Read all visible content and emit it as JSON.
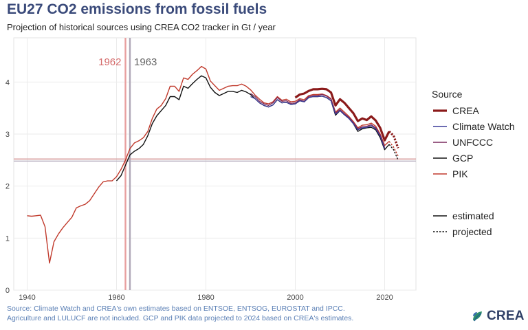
{
  "header": {
    "title": "EU27 CO2 emissions from fossil fuels",
    "subtitle": "Projection of historical sources using CREA CO2 tracker in Gt / year"
  },
  "footer": {
    "caption_line1": "Source: Climate Watch and CREA's own estimates based on ENTSOE, ENTSOG, EUROSTAT and IPCC.",
    "caption_line2": "Agriculture and LULUCF are not included. GCP and PIK data projected to 2024 based on CREA's estimates.",
    "logo_text": "CREA",
    "logo_icon": "crea-leaf-logo-icon"
  },
  "colors": {
    "CREA": "#8b1a1a",
    "Climate Watch": "#3b3b98",
    "UNFCCC": "#7a2a5e",
    "GCP": "#111111",
    "PIK": "#c0392b",
    "vline_1962": "#e8a0a0",
    "vline_1963": "#b0a8b8",
    "hline": "#d9a0a0",
    "label_1962": "#d46a6a",
    "label_1963": "#666666"
  },
  "chart_data": {
    "type": "line",
    "title": "EU27 CO2 emissions from fossil fuels",
    "subtitle": "Projection of historical sources using CREA CO2 tracker in Gt / year",
    "xlabel": "",
    "ylabel": "",
    "xlim": [
      1937,
      2027
    ],
    "ylim": [
      0,
      4.85
    ],
    "x_ticks": [
      1940,
      1960,
      1980,
      2000,
      2020
    ],
    "y_ticks": [
      0,
      1,
      2,
      3,
      4
    ],
    "grid": true,
    "legend_title": "Source",
    "legend_position": "right",
    "linetype_legend": [
      "estimated",
      "projected"
    ],
    "vlines": [
      {
        "x": 1962,
        "label": "1962"
      },
      {
        "x": 1963,
        "label": "1963"
      }
    ],
    "hline": 2.5,
    "series": [
      {
        "name": "CREA",
        "estimated": {
          "x": [
            2000,
            2001,
            2002,
            2003,
            2004,
            2005,
            2006,
            2007,
            2008,
            2009,
            2010,
            2011,
            2012,
            2013,
            2014,
            2015,
            2016,
            2017,
            2018,
            2019,
            2020,
            2021
          ],
          "y": [
            3.7,
            3.76,
            3.78,
            3.83,
            3.86,
            3.86,
            3.87,
            3.86,
            3.8,
            3.55,
            3.67,
            3.6,
            3.5,
            3.4,
            3.25,
            3.3,
            3.27,
            3.34,
            3.26,
            3.12,
            2.88,
            3.05
          ]
        },
        "projected": {
          "x": [
            2021,
            2022,
            2023
          ],
          "y": [
            3.05,
            2.97,
            2.73
          ]
        }
      },
      {
        "name": "Climate Watch",
        "estimated": {
          "x": [
            1990,
            1991,
            1992,
            1993,
            1994,
            1995,
            1996,
            1997,
            1998,
            1999,
            2000,
            2001,
            2002,
            2003,
            2004,
            2005,
            2006,
            2007,
            2008,
            2009,
            2010,
            2011,
            2012,
            2013,
            2014,
            2015,
            2016,
            2017,
            2018,
            2019,
            2020
          ],
          "y": [
            3.72,
            3.68,
            3.6,
            3.55,
            3.52,
            3.56,
            3.66,
            3.6,
            3.61,
            3.57,
            3.58,
            3.64,
            3.62,
            3.7,
            3.72,
            3.72,
            3.73,
            3.7,
            3.64,
            3.38,
            3.45,
            3.37,
            3.3,
            3.2,
            3.08,
            3.12,
            3.13,
            3.16,
            3.1,
            2.96,
            2.72
          ]
        }
      },
      {
        "name": "UNFCCC",
        "estimated": {
          "x": [
            1990,
            1991,
            1992,
            1993,
            1994,
            1995,
            1996,
            1997,
            1998,
            1999,
            2000,
            2001,
            2002,
            2003,
            2004,
            2005,
            2006,
            2007,
            2008,
            2009,
            2010,
            2011,
            2012,
            2013,
            2014,
            2015,
            2016,
            2017,
            2018,
            2019,
            2020
          ],
          "y": [
            3.78,
            3.72,
            3.63,
            3.58,
            3.55,
            3.6,
            3.7,
            3.63,
            3.64,
            3.59,
            3.6,
            3.66,
            3.63,
            3.72,
            3.74,
            3.74,
            3.76,
            3.73,
            3.67,
            3.4,
            3.47,
            3.39,
            3.32,
            3.22,
            3.1,
            3.14,
            3.15,
            3.18,
            3.12,
            2.98,
            2.74
          ]
        }
      },
      {
        "name": "GCP",
        "estimated": {
          "x": [
            1960,
            1961,
            1962,
            1963,
            1964,
            1965,
            1966,
            1967,
            1968,
            1969,
            1970,
            1971,
            1972,
            1973,
            1974,
            1975,
            1976,
            1977,
            1978,
            1979,
            1980,
            1981,
            1982,
            1983,
            1984,
            1985,
            1986,
            1987,
            1988,
            1989,
            1990,
            1991,
            1992,
            1993,
            1994,
            1995,
            1996,
            1997,
            1998,
            1999,
            2000,
            2001,
            2002,
            2003,
            2004,
            2005,
            2006,
            2007,
            2008,
            2009,
            2010,
            2011,
            2012,
            2013,
            2014,
            2015,
            2016,
            2017,
            2018,
            2019,
            2020,
            2021
          ],
          "y": [
            2.1,
            2.2,
            2.4,
            2.6,
            2.67,
            2.72,
            2.8,
            2.97,
            3.2,
            3.35,
            3.45,
            3.55,
            3.72,
            3.72,
            3.66,
            3.92,
            3.88,
            3.97,
            4.05,
            4.12,
            4.08,
            3.9,
            3.8,
            3.74,
            3.78,
            3.82,
            3.82,
            3.8,
            3.84,
            3.81,
            3.76,
            3.68,
            3.6,
            3.55,
            3.52,
            3.56,
            3.66,
            3.6,
            3.61,
            3.57,
            3.58,
            3.64,
            3.62,
            3.7,
            3.72,
            3.72,
            3.73,
            3.7,
            3.64,
            3.36,
            3.45,
            3.37,
            3.3,
            3.2,
            3.05,
            3.1,
            3.12,
            3.13,
            3.08,
            2.93,
            2.7,
            2.8
          ]
        },
        "projected": {
          "x": [
            2021,
            2022,
            2023
          ],
          "y": [
            2.8,
            2.7,
            2.5
          ]
        }
      },
      {
        "name": "PIK",
        "estimated": {
          "x": [
            1940,
            1941,
            1942,
            1943,
            1944,
            1945,
            1946,
            1947,
            1948,
            1949,
            1950,
            1951,
            1952,
            1953,
            1954,
            1955,
            1956,
            1957,
            1958,
            1959,
            1960,
            1961,
            1962,
            1963,
            1964,
            1965,
            1966,
            1967,
            1968,
            1969,
            1970,
            1971,
            1972,
            1973,
            1974,
            1975,
            1976,
            1977,
            1978,
            1979,
            1980,
            1981,
            1982,
            1983,
            1984,
            1985,
            1986,
            1987,
            1988,
            1989,
            1990,
            1991,
            1992,
            1993,
            1994,
            1995,
            1996,
            1997,
            1998,
            1999,
            2000,
            2001,
            2002,
            2003,
            2004,
            2005,
            2006,
            2007,
            2008,
            2009,
            2010,
            2011,
            2012,
            2013,
            2014,
            2015,
            2016,
            2017,
            2018,
            2019,
            2020,
            2021
          ],
          "y": [
            1.43,
            1.42,
            1.43,
            1.44,
            1.22,
            0.52,
            0.93,
            1.08,
            1.2,
            1.3,
            1.4,
            1.58,
            1.62,
            1.65,
            1.72,
            1.85,
            1.98,
            2.08,
            2.1,
            2.1,
            2.18,
            2.32,
            2.5,
            2.72,
            2.83,
            2.87,
            2.93,
            3.05,
            3.3,
            3.48,
            3.55,
            3.68,
            3.92,
            3.92,
            3.82,
            4.08,
            4.05,
            4.15,
            4.22,
            4.3,
            4.25,
            4.02,
            3.93,
            3.84,
            3.88,
            3.92,
            3.93,
            3.93,
            3.96,
            3.92,
            3.85,
            3.75,
            3.67,
            3.6,
            3.58,
            3.62,
            3.72,
            3.65,
            3.67,
            3.62,
            3.63,
            3.68,
            3.66,
            3.74,
            3.76,
            3.76,
            3.77,
            3.74,
            3.68,
            3.42,
            3.5,
            3.42,
            3.34,
            3.24,
            3.12,
            3.17,
            3.18,
            3.21,
            3.15,
            3.0,
            2.78,
            2.86
          ]
        },
        "projected": {
          "x": [
            2021,
            2022,
            2023
          ],
          "y": [
            2.86,
            2.75,
            2.58
          ]
        }
      }
    ]
  }
}
